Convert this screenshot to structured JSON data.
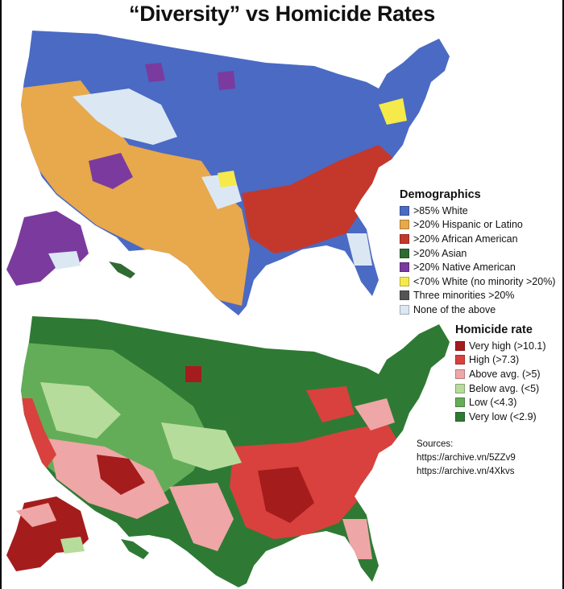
{
  "title": "“Diversity” vs Homicide Rates",
  "colors": {
    "white": "#4a6ac4",
    "hispanic": "#e8a84c",
    "african_american": "#c4382c",
    "asian": "#2f6b33",
    "native": "#7b3a9e",
    "no_majority": "#f5ea4a",
    "three_minorities": "#555555",
    "none": "#dbe8f3",
    "very_high": "#a51c1c",
    "high": "#d9413e",
    "above_avg": "#eea6a6",
    "below_avg": "#b6dc9c",
    "low": "#63ad58",
    "very_low": "#2e7a34",
    "water": "#ffffff",
    "ocean_islands": "#2e7a34"
  },
  "demographics": {
    "title": "Demographics",
    "items": [
      {
        "label": ">85% White",
        "color": "#4a6ac4"
      },
      {
        "label": ">20% Hispanic or Latino",
        "color": "#e8a84c"
      },
      {
        "label": ">20% African American",
        "color": "#c4382c"
      },
      {
        "label": ">20% Asian",
        "color": "#2f6b33"
      },
      {
        "label": ">20% Native American",
        "color": "#7b3a9e"
      },
      {
        "label": "<70% White (no minority >20%)",
        "color": "#f5ea4a"
      },
      {
        "label": "Three minorities >20%",
        "color": "#555555"
      },
      {
        "label": "None of the above",
        "color": "#dbe8f3"
      }
    ]
  },
  "homicide": {
    "title": "Homicide rate",
    "items": [
      {
        "label": "Very high (>10.1)",
        "color": "#a51c1c"
      },
      {
        "label": "High (>7.3)",
        "color": "#d9413e"
      },
      {
        "label": "Above avg. (>5)",
        "color": "#eea6a6"
      },
      {
        "label": "Below avg. (<5)",
        "color": "#b6dc9c"
      },
      {
        "label": "Low (<4.3)",
        "color": "#63ad58"
      },
      {
        "label": "Very low (<2.9)",
        "color": "#2e7a34"
      }
    ]
  },
  "sources": {
    "label": "Sources:",
    "links": [
      "https://archive.vn/5ZZv9",
      "https://archive.vn/4Xkvs"
    ]
  }
}
